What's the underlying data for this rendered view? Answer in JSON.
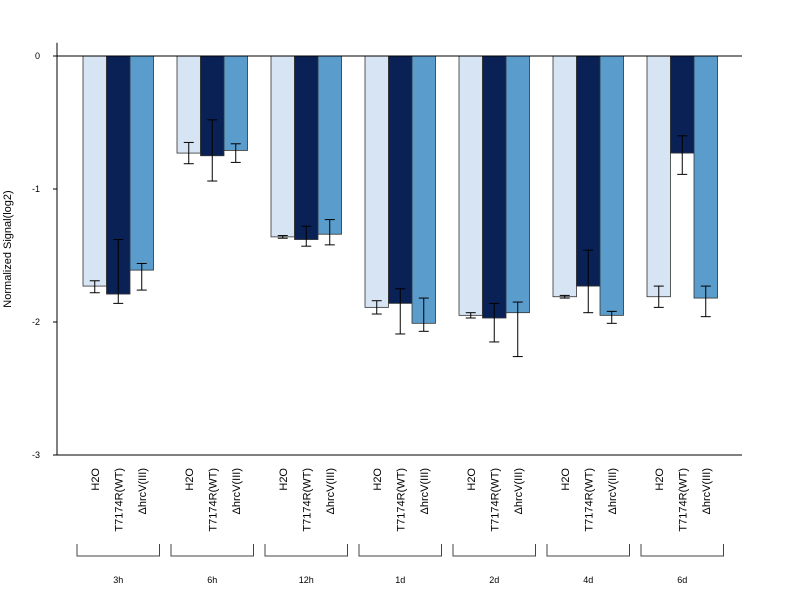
{
  "chart_data": {
    "type": "bar",
    "ylabel": "Normalized Signal(log2)",
    "ylim": [
      -3,
      0.1
    ],
    "yticks": [
      0,
      -1,
      -2,
      -3
    ],
    "conditions": [
      "H2O",
      "T7174R(WT)",
      "ΔhrcV(III)"
    ],
    "categories": [
      "3h",
      "6h",
      "12h",
      "1d",
      "2d",
      "4d",
      "6d"
    ],
    "series": [
      {
        "name": "H2O",
        "color": "#d6e4f4",
        "values": [
          -1.73,
          -0.73,
          -1.36,
          -1.89,
          -1.95,
          -1.81,
          -1.81
        ],
        "err_low": [
          -1.78,
          -0.81,
          -1.37,
          -1.94,
          -1.97,
          -1.82,
          -1.89
        ],
        "err_high": [
          -1.69,
          -0.65,
          -1.35,
          -1.84,
          -1.93,
          -1.8,
          -1.73
        ]
      },
      {
        "name": "T7174R(WT)",
        "color": "#0a2156",
        "values": [
          -1.79,
          -0.75,
          -1.38,
          -1.86,
          -1.97,
          -1.73,
          -0.73
        ],
        "err_low": [
          -1.86,
          -0.94,
          -1.43,
          -2.09,
          -2.15,
          -1.93,
          -0.89
        ],
        "err_high": [
          -1.38,
          -0.48,
          -1.28,
          -1.75,
          -1.86,
          -1.46,
          -0.6
        ]
      },
      {
        "name": "ΔhrcV(III)",
        "color": "#5a9ccb",
        "values": [
          -1.61,
          -0.71,
          -1.34,
          -2.01,
          -1.93,
          -1.95,
          -1.82
        ],
        "err_low": [
          -1.76,
          -0.8,
          -1.42,
          -2.07,
          -2.26,
          -2.01,
          -1.96
        ],
        "err_high": [
          -1.56,
          -0.66,
          -1.23,
          -1.82,
          -1.85,
          -1.92,
          -1.73
        ]
      }
    ]
  }
}
